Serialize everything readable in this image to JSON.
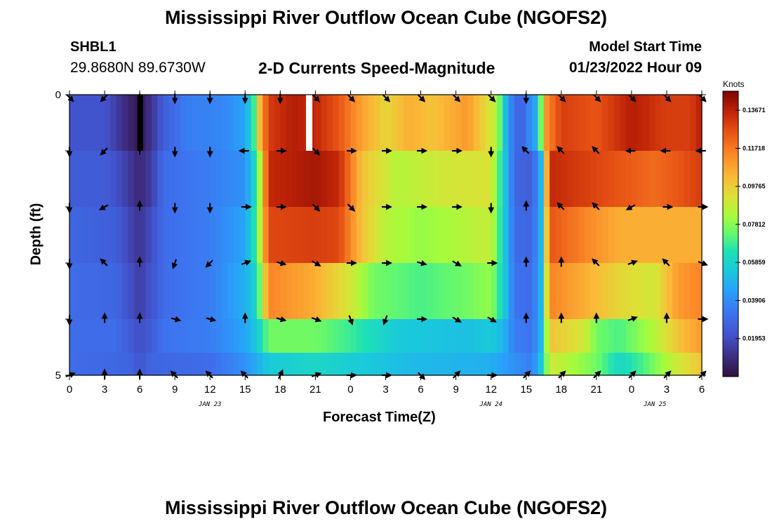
{
  "header": {
    "title": "Mississippi River Outflow Ocean Cube (NGOFS2)",
    "station_id": "SHBL1",
    "station_coords": "29.8680N  89.6730W",
    "subtitle": "2-D Currents Speed-Magnitude",
    "model_start_label": "Model Start Time",
    "model_start_value": "01/23/2022 Hour 09"
  },
  "footer": {
    "title": "Mississippi River Outflow Ocean Cube (NGOFS2)"
  },
  "chart_data": {
    "type": "heatmap",
    "xlabel": "Forecast Time(Z)",
    "ylabel": "Depth (ft)",
    "x_hours": [
      0,
      54
    ],
    "ylim": [
      0,
      5
    ],
    "y_tick_labels": [
      "0",
      "5"
    ],
    "x_tick_labels": [
      "0",
      "3",
      "6",
      "9",
      "12",
      "15",
      "18",
      "21",
      "0",
      "3",
      "6",
      "9",
      "12",
      "15",
      "18",
      "21",
      "0",
      "3",
      "6"
    ],
    "day_labels": [
      {
        "text": "JAN 23",
        "hour": 12
      },
      {
        "text": "JAN 24",
        "hour": 36
      },
      {
        "text": "JAN 25",
        "hour": 50
      }
    ],
    "colorbar": {
      "unit": "Knots",
      "min": 0.0,
      "max": 0.1465,
      "tick_values": [
        "0.01953",
        "0.03906",
        "0.05859",
        "0.07812",
        "0.09765",
        "0.11718",
        "0.13671"
      ]
    },
    "layers_depth_ft": [
      0.5,
      1.5,
      2.5,
      3.5,
      4.5,
      5.0
    ],
    "speed_keyframes": [
      {
        "layer": 0,
        "points": [
          [
            0,
            0.022
          ],
          [
            3,
            0.022
          ],
          [
            4,
            0.015
          ],
          [
            5,
            0.008
          ],
          [
            6,
            0.003
          ],
          [
            7,
            0.012
          ],
          [
            8,
            0.025
          ],
          [
            10,
            0.035
          ],
          [
            13,
            0.037
          ],
          [
            15,
            0.045
          ],
          [
            15.7,
            0.065
          ],
          [
            16.3,
            0.105
          ],
          [
            17,
            0.13
          ],
          [
            19,
            0.138
          ],
          [
            21,
            0.135
          ],
          [
            23,
            0.125
          ],
          [
            25,
            0.108
          ],
          [
            27,
            0.095
          ],
          [
            29,
            0.105
          ],
          [
            31,
            0.1
          ],
          [
            34,
            0.11
          ],
          [
            36.5,
            0.085
          ],
          [
            37.5,
            0.04
          ],
          [
            38.5,
            0.025
          ],
          [
            40,
            0.05
          ],
          [
            40.6,
            0.11
          ],
          [
            42,
            0.13
          ],
          [
            45,
            0.125
          ],
          [
            48,
            0.138
          ],
          [
            51,
            0.13
          ],
          [
            53,
            0.13
          ],
          [
            54,
            0.138
          ]
        ]
      },
      {
        "layer": 1,
        "points": [
          [
            0,
            0.025
          ],
          [
            3,
            0.025
          ],
          [
            4.5,
            0.018
          ],
          [
            6,
            0.008
          ],
          [
            7,
            0.015
          ],
          [
            8,
            0.03
          ],
          [
            12,
            0.035
          ],
          [
            15,
            0.04
          ],
          [
            16,
            0.065
          ],
          [
            17,
            0.135
          ],
          [
            21,
            0.14
          ],
          [
            23,
            0.135
          ],
          [
            25,
            0.1
          ],
          [
            28,
            0.085
          ],
          [
            32,
            0.09
          ],
          [
            36,
            0.092
          ],
          [
            37,
            0.06
          ],
          [
            38,
            0.028
          ],
          [
            39.5,
            0.025
          ],
          [
            40.3,
            0.05
          ],
          [
            41,
            0.135
          ],
          [
            44,
            0.13
          ],
          [
            47,
            0.125
          ],
          [
            50,
            0.12
          ],
          [
            54,
            0.13
          ]
        ]
      },
      {
        "layer": 2,
        "points": [
          [
            0,
            0.028
          ],
          [
            4,
            0.025
          ],
          [
            6,
            0.012
          ],
          [
            7,
            0.02
          ],
          [
            8,
            0.03
          ],
          [
            12,
            0.035
          ],
          [
            15,
            0.045
          ],
          [
            16,
            0.07
          ],
          [
            17,
            0.128
          ],
          [
            21,
            0.13
          ],
          [
            23,
            0.128
          ],
          [
            25,
            0.1
          ],
          [
            27,
            0.085
          ],
          [
            30,
            0.08
          ],
          [
            34,
            0.085
          ],
          [
            36,
            0.088
          ],
          [
            37,
            0.06
          ],
          [
            38,
            0.03
          ],
          [
            39.5,
            0.028
          ],
          [
            40.3,
            0.05
          ],
          [
            41,
            0.125
          ],
          [
            44,
            0.115
          ],
          [
            47,
            0.105
          ],
          [
            54,
            0.105
          ]
        ]
      },
      {
        "layer": 3,
        "points": [
          [
            0,
            0.03
          ],
          [
            4,
            0.028
          ],
          [
            6,
            0.015
          ],
          [
            7,
            0.022
          ],
          [
            8,
            0.03
          ],
          [
            12,
            0.035
          ],
          [
            15,
            0.048
          ],
          [
            16,
            0.06
          ],
          [
            17,
            0.115
          ],
          [
            21,
            0.105
          ],
          [
            24,
            0.09
          ],
          [
            26,
            0.075
          ],
          [
            30,
            0.07
          ],
          [
            34,
            0.075
          ],
          [
            36,
            0.08
          ],
          [
            37,
            0.06
          ],
          [
            38,
            0.032
          ],
          [
            39.5,
            0.03
          ],
          [
            40.3,
            0.05
          ],
          [
            41,
            0.115
          ],
          [
            44,
            0.105
          ],
          [
            47,
            0.095
          ],
          [
            50,
            0.09
          ],
          [
            52,
            0.11
          ],
          [
            54,
            0.115
          ]
        ]
      },
      {
        "layer": 4,
        "points": [
          [
            0,
            0.03
          ],
          [
            4,
            0.03
          ],
          [
            6,
            0.02
          ],
          [
            7,
            0.025
          ],
          [
            8,
            0.032
          ],
          [
            12,
            0.035
          ],
          [
            15,
            0.045
          ],
          [
            16,
            0.055
          ],
          [
            17,
            0.075
          ],
          [
            21,
            0.075
          ],
          [
            24,
            0.068
          ],
          [
            28,
            0.055
          ],
          [
            34,
            0.052
          ],
          [
            36,
            0.055
          ],
          [
            37,
            0.05
          ],
          [
            38,
            0.035
          ],
          [
            39.5,
            0.032
          ],
          [
            40.3,
            0.05
          ],
          [
            41,
            0.1
          ],
          [
            44,
            0.09
          ],
          [
            45,
            0.075
          ],
          [
            47,
            0.07
          ],
          [
            50,
            0.085
          ],
          [
            52,
            0.1
          ],
          [
            54,
            0.11
          ]
        ]
      },
      {
        "layer": 5,
        "points": [
          [
            0,
            0.03
          ],
          [
            5,
            0.028
          ],
          [
            6,
            0.022
          ],
          [
            7,
            0.028
          ],
          [
            12,
            0.03
          ],
          [
            15,
            0.04
          ],
          [
            17,
            0.055
          ],
          [
            21,
            0.06
          ],
          [
            25,
            0.055
          ],
          [
            30,
            0.05
          ],
          [
            36,
            0.048
          ],
          [
            38,
            0.04
          ],
          [
            39.5,
            0.035
          ],
          [
            40.3,
            0.055
          ],
          [
            41,
            0.09
          ],
          [
            45,
            0.075
          ],
          [
            47,
            0.06
          ],
          [
            49,
            0.07
          ],
          [
            52,
            0.09
          ],
          [
            54,
            0.1
          ]
        ]
      }
    ],
    "vector_hours": [
      0,
      3,
      6,
      9,
      12,
      15,
      18,
      21,
      24,
      27,
      30,
      33,
      36,
      39,
      42,
      45,
      48,
      51,
      54
    ],
    "vector_depths_ft": [
      0.05,
      1.0,
      2.0,
      3.0,
      4.0,
      5.0
    ],
    "vector_direction_deg": [
      [
        135,
        225,
        180,
        180,
        180,
        180,
        180,
        135,
        135,
        135,
        135,
        135,
        135,
        180,
        135,
        135,
        135,
        135,
        135
      ],
      [
        180,
        225,
        0,
        180,
        180,
        270,
        90,
        135,
        90,
        90,
        90,
        90,
        180,
        315,
        315,
        315,
        270,
        270,
        270
      ],
      [
        180,
        240,
        0,
        180,
        180,
        90,
        90,
        135,
        135,
        90,
        90,
        90,
        180,
        0,
        315,
        315,
        240,
        90,
        90
      ],
      [
        180,
        315,
        0,
        200,
        225,
        70,
        105,
        120,
        90,
        90,
        105,
        120,
        90,
        0,
        0,
        315,
        70,
        315,
        110
      ],
      [
        180,
        0,
        0,
        105,
        105,
        0,
        105,
        110,
        160,
        200,
        90,
        120,
        120,
        0,
        0,
        0,
        70,
        0,
        90
      ],
      [
        70,
        0,
        0,
        315,
        315,
        315,
        25,
        70,
        90,
        90,
        135,
        45,
        90,
        45,
        45,
        45,
        45,
        45,
        45
      ]
    ]
  }
}
